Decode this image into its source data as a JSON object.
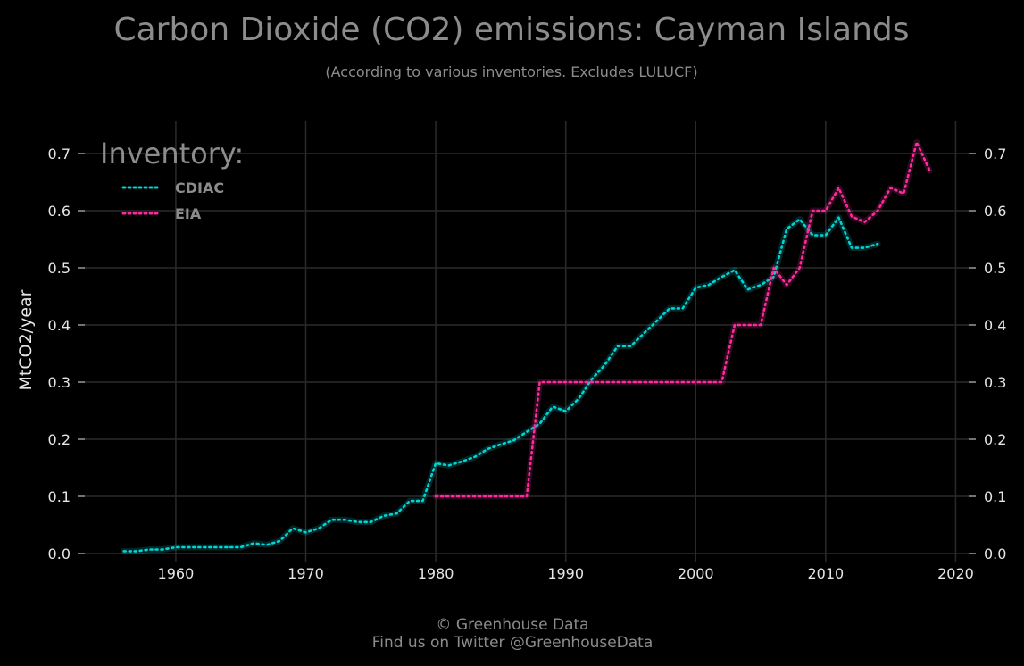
{
  "colors": {
    "background": "#000000",
    "grid": "#2a2a2a",
    "title": "#8c8c8c",
    "tick_label": "#e6e6e6",
    "cdiac": "#00d5d5",
    "eia": "#ff2a9d"
  },
  "footer": {
    "line1": "© Greenhouse Data",
    "line2": "Find us on Twitter @GreenhouseData"
  },
  "chart_data": {
    "type": "line",
    "title": "Carbon Dioxide (CO2) emissions: Cayman Islands",
    "subtitle": "(According to various inventories. Excludes LULUCF)",
    "xlabel": "",
    "ylabel": "MtCO2/year",
    "xlim": [
      1953,
      2021
    ],
    "ylim": [
      0,
      0.75
    ],
    "x_ticks": [
      1960,
      1970,
      1980,
      1990,
      2000,
      2010,
      2020
    ],
    "y_ticks": [
      0.0,
      0.1,
      0.2,
      0.3,
      0.4,
      0.5,
      0.6,
      0.7
    ],
    "y_tick_labels": [
      "0.0",
      "0.1",
      "0.2",
      "0.3",
      "0.4",
      "0.5",
      "0.6",
      "0.7"
    ],
    "grid": true,
    "line_style": "dotted",
    "legend": {
      "title": "Inventory:",
      "placement": "top-left"
    },
    "series": [
      {
        "name": "CDIAC",
        "color": "#00d5d5",
        "x": [
          1956,
          1957,
          1958,
          1959,
          1960,
          1961,
          1962,
          1963,
          1964,
          1965,
          1966,
          1967,
          1968,
          1969,
          1970,
          1971,
          1972,
          1973,
          1974,
          1975,
          1976,
          1977,
          1978,
          1979,
          1980,
          1981,
          1982,
          1983,
          1984,
          1985,
          1986,
          1987,
          1988,
          1989,
          1990,
          1991,
          1992,
          1993,
          1994,
          1995,
          1996,
          1997,
          1998,
          1999,
          2000,
          2001,
          2002,
          2003,
          2004,
          2005,
          2006,
          2007,
          2008,
          2009,
          2010,
          2011,
          2012,
          2013,
          2014
        ],
        "values": [
          0.004,
          0.004,
          0.007,
          0.007,
          0.011,
          0.011,
          0.011,
          0.011,
          0.011,
          0.011,
          0.018,
          0.015,
          0.022,
          0.044,
          0.037,
          0.044,
          0.059,
          0.059,
          0.055,
          0.055,
          0.066,
          0.07,
          0.092,
          0.092,
          0.158,
          0.154,
          0.161,
          0.169,
          0.183,
          0.191,
          0.198,
          0.213,
          0.227,
          0.257,
          0.249,
          0.271,
          0.305,
          0.33,
          0.363,
          0.363,
          0.385,
          0.407,
          0.429,
          0.429,
          0.465,
          0.47,
          0.484,
          0.496,
          0.462,
          0.47,
          0.484,
          0.568,
          0.585,
          0.557,
          0.557,
          0.588,
          0.535,
          0.535,
          0.542
        ]
      },
      {
        "name": "EIA",
        "color": "#ff2a9d",
        "x": [
          1980,
          1981,
          1982,
          1983,
          1984,
          1985,
          1986,
          1987,
          1988,
          1989,
          1990,
          1991,
          1992,
          1993,
          1994,
          1995,
          1996,
          1997,
          1998,
          1999,
          2000,
          2001,
          2002,
          2003,
          2004,
          2005,
          2006,
          2007,
          2008,
          2009,
          2010,
          2011,
          2012,
          2013,
          2014,
          2015,
          2016,
          2017,
          2018
        ],
        "values": [
          0.1,
          0.1,
          0.1,
          0.1,
          0.1,
          0.1,
          0.1,
          0.1,
          0.3,
          0.3,
          0.3,
          0.3,
          0.3,
          0.3,
          0.3,
          0.3,
          0.3,
          0.3,
          0.3,
          0.3,
          0.3,
          0.3,
          0.3,
          0.4,
          0.4,
          0.4,
          0.5,
          0.47,
          0.5,
          0.6,
          0.6,
          0.64,
          0.59,
          0.58,
          0.6,
          0.64,
          0.63,
          0.72,
          0.67
        ]
      }
    ]
  }
}
